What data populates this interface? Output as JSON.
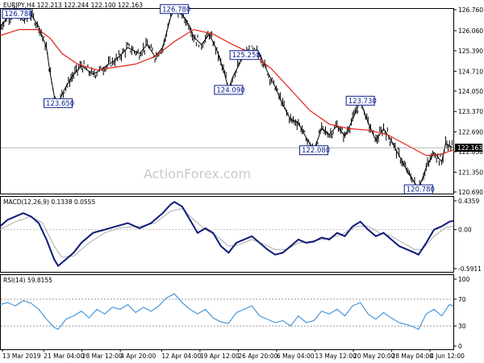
{
  "colors": {
    "candle": "#000000",
    "ma": "#e2231a",
    "macd": "#0d1a7a",
    "signal": "#aaaaaa",
    "rsi": "#2a86d6",
    "annotation_border": "#0a1e8c",
    "current_price_bg": "#000000"
  },
  "watermark": "ActionForex.com",
  "chart_data": [
    {
      "type": "line",
      "panel": "price",
      "title": "EURJPY,H4  122.213 122.244 122.100 122.163",
      "y_ticks": [
        "126.760",
        "126.060",
        "125.390",
        "124.710",
        "124.050",
        "123.370",
        "122.690",
        "122.030",
        "121.350",
        "120.690"
      ],
      "ylim": [
        120.69,
        126.76
      ],
      "current_price": "122.163",
      "close_path": [
        [
          0,
          126.2
        ],
        [
          2,
          126.5
        ],
        [
          4,
          126.7
        ],
        [
          6,
          126.4
        ],
        [
          8,
          126.6
        ],
        [
          10,
          126.2
        ],
        [
          12,
          125.5
        ],
        [
          13,
          124.6
        ],
        [
          14,
          123.9
        ],
        [
          15,
          123.65
        ],
        [
          17,
          124.2
        ],
        [
          19,
          124.6
        ],
        [
          21,
          124.9
        ],
        [
          24,
          124.6
        ],
        [
          27,
          124.85
        ],
        [
          30,
          125.1
        ],
        [
          33,
          125.5
        ],
        [
          36,
          125.3
        ],
        [
          38,
          125.6
        ],
        [
          40,
          125.2
        ],
        [
          42,
          125.5
        ],
        [
          44,
          126.5
        ],
        [
          45,
          126.78
        ],
        [
          47,
          126.6
        ],
        [
          49,
          126.2
        ],
        [
          50,
          125.85
        ],
        [
          52,
          125.6
        ],
        [
          54,
          125.95
        ],
        [
          56,
          125.4
        ],
        [
          58,
          124.6
        ],
        [
          59,
          124.09
        ],
        [
          60,
          124.5
        ],
        [
          62,
          125.0
        ],
        [
          63,
          125.25
        ],
        [
          65,
          125.4
        ],
        [
          67,
          125.3
        ],
        [
          69,
          124.7
        ],
        [
          71,
          124.2
        ],
        [
          73,
          123.6
        ],
        [
          75,
          123.1
        ],
        [
          77,
          123.0
        ],
        [
          79,
          122.5
        ],
        [
          81,
          122.08
        ],
        [
          83,
          122.8
        ],
        [
          85,
          122.6
        ],
        [
          87,
          122.9
        ],
        [
          89,
          122.55
        ],
        [
          91,
          123.1
        ],
        [
          93,
          123.73
        ],
        [
          95,
          123.0
        ],
        [
          97,
          122.4
        ],
        [
          99,
          122.8
        ],
        [
          101,
          122.4
        ],
        [
          103,
          121.9
        ],
        [
          105,
          121.4
        ],
        [
          107,
          121.0
        ],
        [
          108,
          120.78
        ],
        [
          110,
          121.5
        ],
        [
          112,
          122.0
        ],
        [
          114,
          121.7
        ],
        [
          115,
          122.3
        ],
        [
          117,
          122.163
        ]
      ],
      "ma_path": [
        [
          0,
          125.9
        ],
        [
          5,
          126.1
        ],
        [
          10,
          126.1
        ],
        [
          13,
          125.8
        ],
        [
          16,
          125.3
        ],
        [
          20,
          124.95
        ],
        [
          25,
          124.75
        ],
        [
          30,
          124.85
        ],
        [
          35,
          124.95
        ],
        [
          40,
          125.2
        ],
        [
          45,
          125.7
        ],
        [
          50,
          126.1
        ],
        [
          55,
          125.95
        ],
        [
          60,
          125.6
        ],
        [
          65,
          125.3
        ],
        [
          70,
          124.8
        ],
        [
          75,
          124.1
        ],
        [
          80,
          123.4
        ],
        [
          85,
          122.95
        ],
        [
          90,
          122.8
        ],
        [
          95,
          122.75
        ],
        [
          100,
          122.6
        ],
        [
          105,
          122.25
        ],
        [
          110,
          121.9
        ],
        [
          114,
          121.95
        ],
        [
          117,
          122.1
        ]
      ],
      "annotations": [
        {
          "text": "126.780",
          "x": 2,
          "y": 126.62
        },
        {
          "text": "123.650",
          "x": 15,
          "y": 123.65
        },
        {
          "text": "126.780",
          "x": 45,
          "y": 126.78
        },
        {
          "text": "125.258",
          "x": 63,
          "y": 125.25
        },
        {
          "text": "124.090",
          "x": 59,
          "y": 124.09
        },
        {
          "text": "122.080",
          "x": 81,
          "y": 122.08
        },
        {
          "text": "123.730",
          "x": 93,
          "y": 123.73
        },
        {
          "text": "120.780",
          "x": 108,
          "y": 120.78
        }
      ]
    },
    {
      "type": "line",
      "panel": "macd",
      "title": "MACD(12,26,9) 0.1338 0.0555",
      "y_ticks": [
        "0.4359",
        "0.00",
        "-0.5911"
      ],
      "ylim": [
        -0.5911,
        0.4359
      ],
      "macd_path": [
        [
          0,
          0.05
        ],
        [
          2,
          0.15
        ],
        [
          4,
          0.2
        ],
        [
          6,
          0.25
        ],
        [
          8,
          0.2
        ],
        [
          10,
          0.1
        ],
        [
          12,
          -0.15
        ],
        [
          14,
          -0.45
        ],
        [
          15,
          -0.55
        ],
        [
          17,
          -0.45
        ],
        [
          19,
          -0.35
        ],
        [
          21,
          -0.2
        ],
        [
          24,
          -0.05
        ],
        [
          27,
          0.0
        ],
        [
          30,
          0.05
        ],
        [
          33,
          0.1
        ],
        [
          36,
          0.02
        ],
        [
          39,
          0.1
        ],
        [
          42,
          0.25
        ],
        [
          44,
          0.38
        ],
        [
          45,
          0.42
        ],
        [
          47,
          0.35
        ],
        [
          49,
          0.15
        ],
        [
          51,
          -0.05
        ],
        [
          53,
          0.02
        ],
        [
          55,
          -0.05
        ],
        [
          57,
          -0.25
        ],
        [
          59,
          -0.35
        ],
        [
          61,
          -0.2
        ],
        [
          63,
          -0.15
        ],
        [
          65,
          -0.1
        ],
        [
          67,
          -0.2
        ],
        [
          69,
          -0.3
        ],
        [
          71,
          -0.38
        ],
        [
          73,
          -0.35
        ],
        [
          75,
          -0.25
        ],
        [
          77,
          -0.15
        ],
        [
          79,
          -0.2
        ],
        [
          81,
          -0.18
        ],
        [
          83,
          -0.12
        ],
        [
          85,
          -0.15
        ],
        [
          87,
          -0.05
        ],
        [
          89,
          -0.1
        ],
        [
          91,
          0.05
        ],
        [
          93,
          0.12
        ],
        [
          95,
          0.0
        ],
        [
          97,
          -0.1
        ],
        [
          99,
          -0.05
        ],
        [
          101,
          -0.15
        ],
        [
          103,
          -0.25
        ],
        [
          105,
          -0.3
        ],
        [
          107,
          -0.35
        ],
        [
          108,
          -0.38
        ],
        [
          110,
          -0.2
        ],
        [
          112,
          0.0
        ],
        [
          114,
          0.05
        ],
        [
          116,
          0.12
        ],
        [
          117,
          0.1338
        ]
      ],
      "signal_path": [
        [
          0,
          0.0
        ],
        [
          4,
          0.12
        ],
        [
          8,
          0.2
        ],
        [
          11,
          0.1
        ],
        [
          14,
          -0.25
        ],
        [
          16,
          -0.42
        ],
        [
          19,
          -0.4
        ],
        [
          23,
          -0.2
        ],
        [
          27,
          -0.05
        ],
        [
          31,
          0.03
        ],
        [
          36,
          0.05
        ],
        [
          40,
          0.1
        ],
        [
          44,
          0.28
        ],
        [
          47,
          0.32
        ],
        [
          50,
          0.15
        ],
        [
          53,
          0.0
        ],
        [
          56,
          -0.1
        ],
        [
          59,
          -0.25
        ],
        [
          62,
          -0.22
        ],
        [
          65,
          -0.15
        ],
        [
          68,
          -0.22
        ],
        [
          71,
          -0.3
        ],
        [
          74,
          -0.3
        ],
        [
          77,
          -0.2
        ],
        [
          80,
          -0.18
        ],
        [
          84,
          -0.14
        ],
        [
          88,
          -0.08
        ],
        [
          92,
          0.05
        ],
        [
          95,
          0.05
        ],
        [
          98,
          -0.05
        ],
        [
          101,
          -0.1
        ],
        [
          104,
          -0.2
        ],
        [
          107,
          -0.3
        ],
        [
          109,
          -0.3
        ],
        [
          112,
          -0.1
        ],
        [
          115,
          0.03
        ],
        [
          117,
          0.0555
        ]
      ]
    },
    {
      "type": "line",
      "panel": "rsi",
      "title": "RSI(14) 59.8155",
      "y_ticks": [
        "100",
        "70",
        "30",
        "0"
      ],
      "ylim": [
        0,
        100
      ],
      "levels": [
        70,
        30
      ],
      "rsi_path": [
        [
          0,
          62
        ],
        [
          2,
          65
        ],
        [
          4,
          60
        ],
        [
          6,
          68
        ],
        [
          8,
          64
        ],
        [
          10,
          55
        ],
        [
          12,
          40
        ],
        [
          14,
          28
        ],
        [
          15,
          25
        ],
        [
          17,
          40
        ],
        [
          19,
          45
        ],
        [
          21,
          52
        ],
        [
          23,
          42
        ],
        [
          25,
          55
        ],
        [
          27,
          48
        ],
        [
          29,
          58
        ],
        [
          31,
          55
        ],
        [
          33,
          62
        ],
        [
          35,
          50
        ],
        [
          37,
          58
        ],
        [
          39,
          52
        ],
        [
          41,
          60
        ],
        [
          43,
          72
        ],
        [
          45,
          78
        ],
        [
          47,
          65
        ],
        [
          49,
          55
        ],
        [
          51,
          48
        ],
        [
          53,
          55
        ],
        [
          55,
          42
        ],
        [
          57,
          36
        ],
        [
          59,
          34
        ],
        [
          61,
          50
        ],
        [
          63,
          55
        ],
        [
          65,
          60
        ],
        [
          67,
          45
        ],
        [
          69,
          40
        ],
        [
          71,
          35
        ],
        [
          73,
          38
        ],
        [
          75,
          30
        ],
        [
          77,
          45
        ],
        [
          79,
          35
        ],
        [
          81,
          38
        ],
        [
          83,
          52
        ],
        [
          85,
          48
        ],
        [
          87,
          55
        ],
        [
          89,
          45
        ],
        [
          91,
          60
        ],
        [
          93,
          65
        ],
        [
          95,
          48
        ],
        [
          97,
          40
        ],
        [
          99,
          50
        ],
        [
          101,
          42
        ],
        [
          103,
          35
        ],
        [
          105,
          32
        ],
        [
          107,
          28
        ],
        [
          108,
          25
        ],
        [
          110,
          48
        ],
        [
          112,
          55
        ],
        [
          114,
          45
        ],
        [
          116,
          62
        ],
        [
          117,
          59.8155
        ]
      ]
    }
  ],
  "x_ticks": [
    {
      "label": "13 Mar 2019",
      "x": 0
    },
    {
      "label": "21 Mar 04:00",
      "x": 14
    },
    {
      "label": "28 Mar 12:00",
      "x": 27
    },
    {
      "label": "4 Apr 20:00",
      "x": 40
    },
    {
      "label": "12 Apr 04:00",
      "x": 54
    },
    {
      "label": "19 Apr 12:00",
      "x": 67
    },
    {
      "label": "26 Apr 20:00",
      "x": 80
    },
    {
      "label": "6 May 04:00",
      "x": 93
    },
    {
      "label": "13 May 12:00",
      "x": 106
    },
    {
      "label": "20 May 20:00",
      "x": 119
    },
    {
      "label": "28 May 04:00",
      "x": 132
    },
    {
      "label": "4 Jun 12:00",
      "x": 145
    }
  ]
}
